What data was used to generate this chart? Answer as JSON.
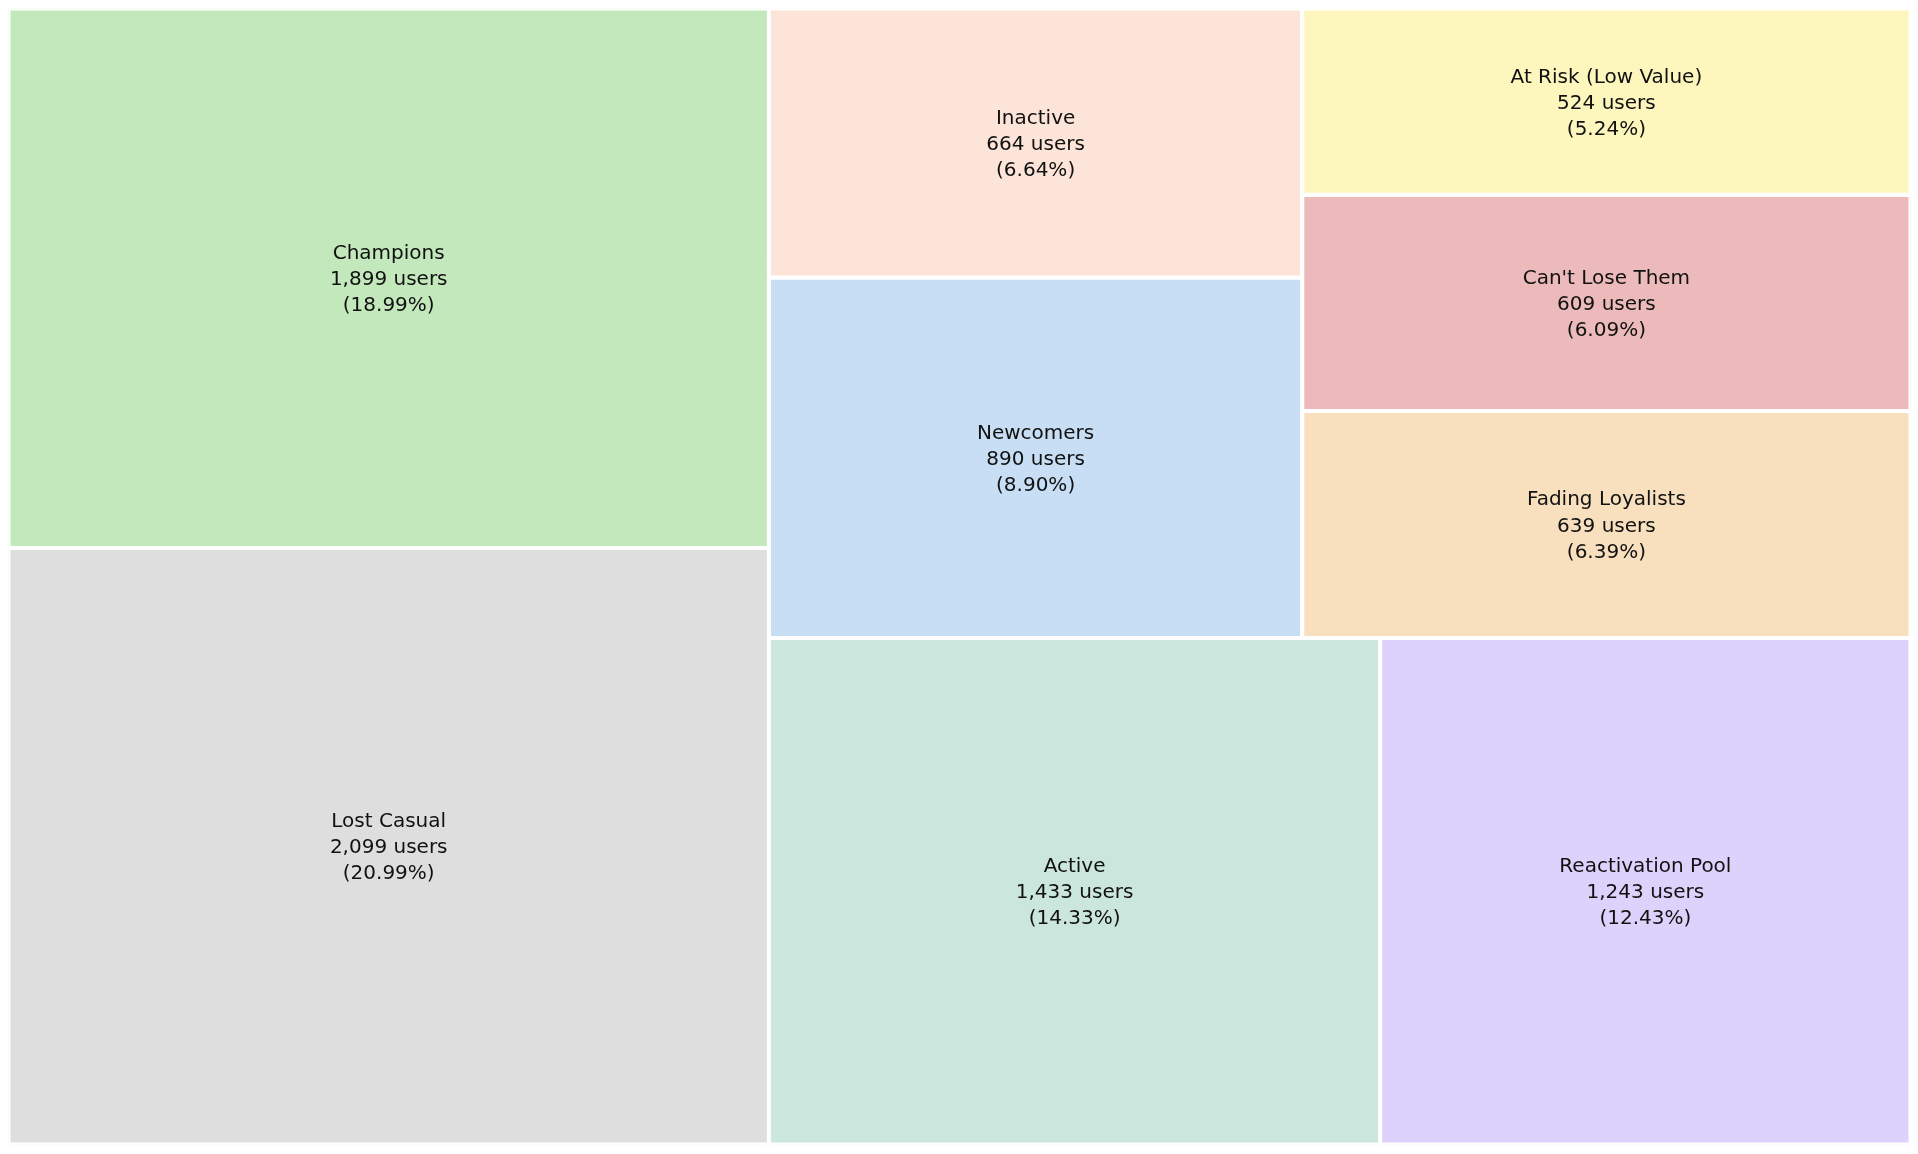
{
  "chart_data": {
    "type": "other",
    "categories": [
      "Lost Casual",
      "Champions",
      "Active",
      "Reactivation Pool",
      "Newcomers",
      "Inactive",
      "Fading Loyalists",
      "Can't Lose Them",
      "At Risk (Low Value)"
    ],
    "values": [
      2099,
      1899,
      1433,
      1243,
      890,
      664,
      639,
      609,
      524
    ],
    "value_labels": [
      "2,099 users\n(20.99%)",
      "1,899 users\n(18.99%)",
      "1,433 users\n(14.33%)",
      "1,243 users\n(12.43%)",
      "890 users\n(8.90%)",
      "664 users\n(6.64%)",
      "639 users\n(6.39%)",
      "609 users\n(6.09%)",
      "524 users\n(5.24%)"
    ],
    "colors": [
      "#dedede",
      "#c2e8bb",
      "#cbe6dc",
      "#ddd2fb",
      "#c8def5",
      "#fce4d8",
      "#f8dfbd",
      "#ecbaba",
      "#fdf6bd"
    ]
  }
}
